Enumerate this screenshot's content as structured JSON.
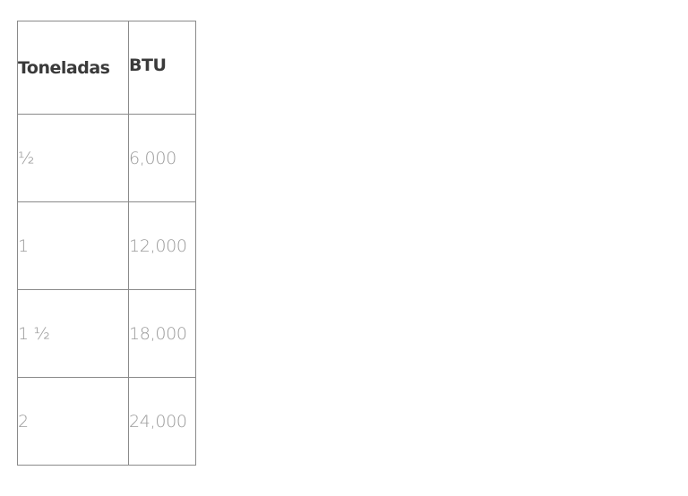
{
  "table": {
    "headers": [
      "Toneladas",
      "BTU"
    ],
    "rows": [
      [
        "½",
        "6,000"
      ],
      [
        "1",
        "12,000"
      ],
      [
        "1 ½",
        "18,000"
      ],
      [
        "2",
        "24,000"
      ]
    ]
  }
}
